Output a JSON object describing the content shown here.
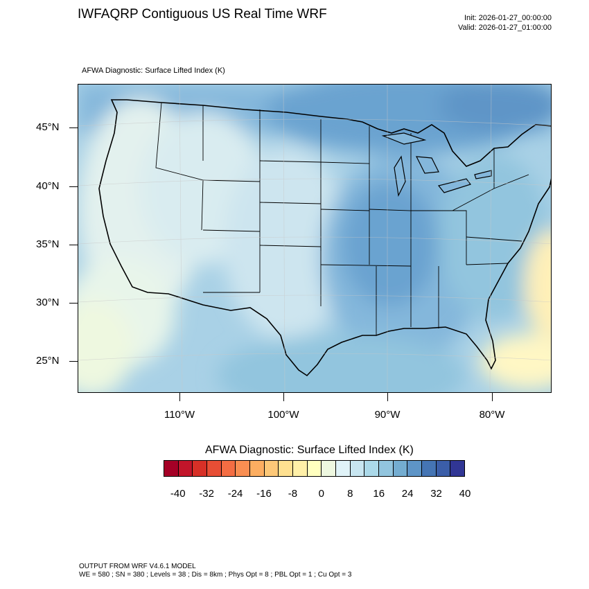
{
  "header": {
    "title": "IWFAQRP Contiguous US Real Time WRF",
    "init": "Init: 2026-01-27_00:00:00",
    "valid": "Valid: 2026-01-27_01:00:00"
  },
  "map": {
    "subtitle": "AFWA Diagnostic: Surface Lifted Index   (K)",
    "lat_labels": [
      "45°N",
      "40°N",
      "35°N",
      "30°N",
      "25°N"
    ],
    "lon_labels": [
      "110°W",
      "100°W",
      "90°W",
      "80°W"
    ],
    "land_color": "#eef6ee",
    "field_colors": [
      "#e3f1ee",
      "#cde5ef",
      "#a9d1e6",
      "#84b7db",
      "#6aa3d0",
      "#4a84c0"
    ]
  },
  "colorbar": {
    "title": "AFWA Diagnostic: Surface Lifted Index  (K)",
    "labels": [
      "-40",
      "-32",
      "-24",
      "-16",
      "-8",
      "0",
      "8",
      "16",
      "24",
      "32",
      "40"
    ],
    "colors": [
      "#a50026",
      "#c2152a",
      "#d73027",
      "#e74e35",
      "#f46d43",
      "#f98e52",
      "#fdae61",
      "#fdc878",
      "#fee090",
      "#fff0a8",
      "#ffffbf",
      "#eef8e0",
      "#e0f3f8",
      "#c8e6f1",
      "#abd9e9",
      "#92c5de",
      "#74add1",
      "#5e95c7",
      "#4575b4",
      "#3b5ea8",
      "#313695"
    ]
  },
  "footer": {
    "line1": "OUTPUT FROM WRF V4.6.1 MODEL",
    "line2": "WE = 580 ; SN = 380 ; Levels = 38 ; Dis = 8km ; Phys Opt = 8 ; PBL Opt = 1 ; Cu Opt = 3"
  }
}
